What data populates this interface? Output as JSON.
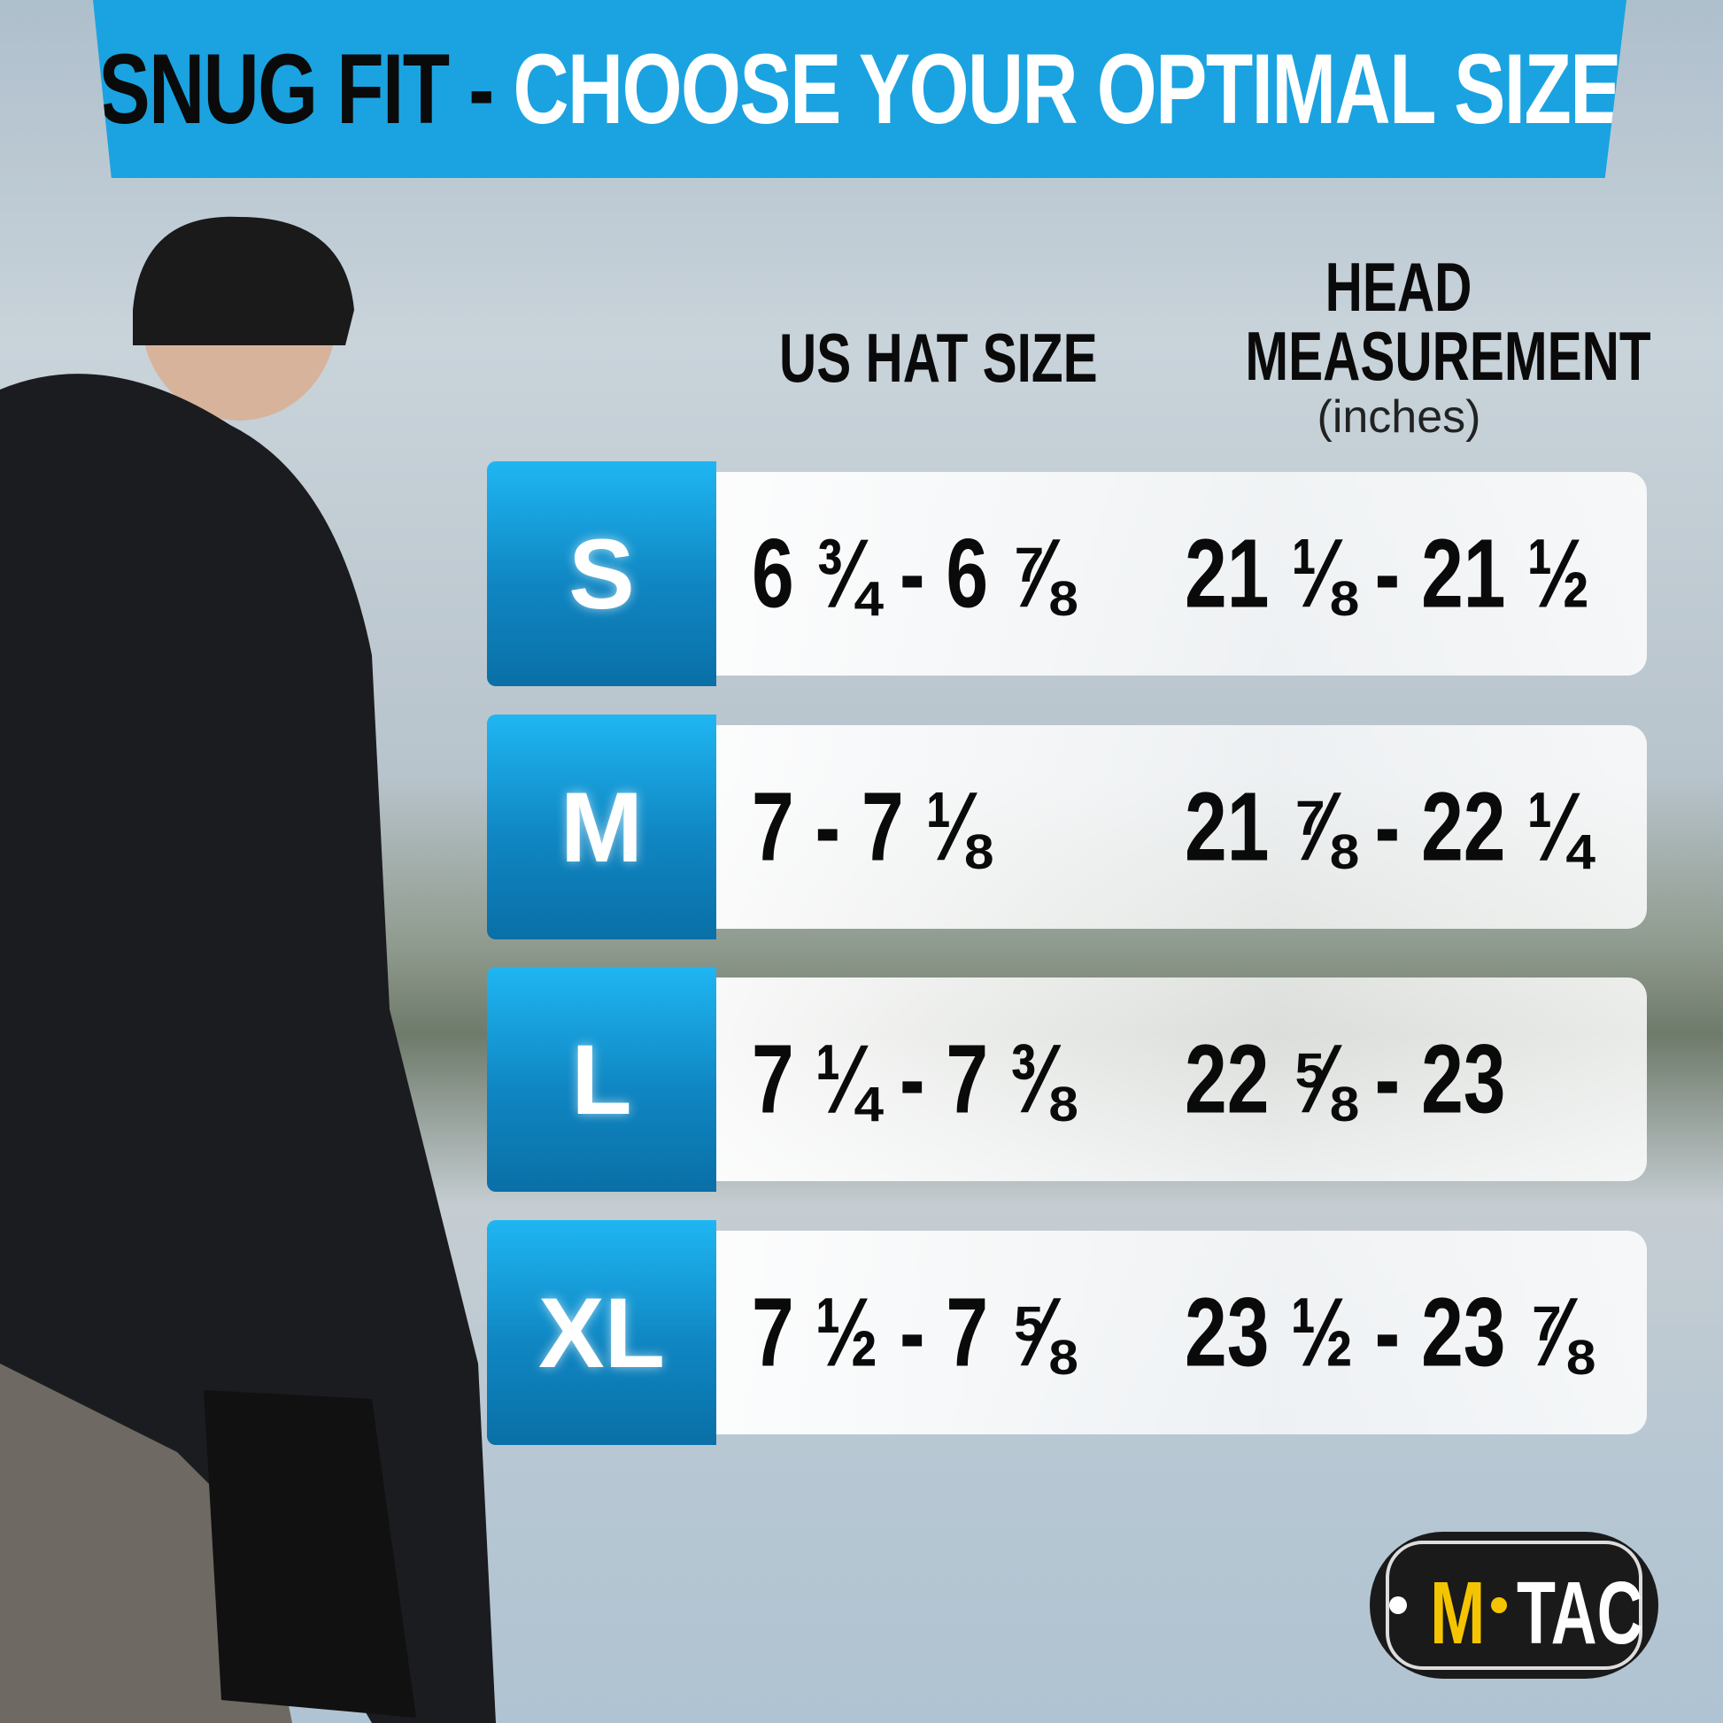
{
  "banner": {
    "title_dark": "SNUG FIT - ",
    "title_light": "CHOOSE YOUR OPTIMAL SIZE"
  },
  "columns": {
    "hat_size": "US HAT SIZE",
    "head_line1": "HEAD",
    "head_line2": "MEASUREMENT",
    "head_unit": "(inches)"
  },
  "rows": [
    {
      "size": "S",
      "hat": "6 ¾ - 6 ⅞",
      "head": "21 ⅛ - 21 ½"
    },
    {
      "size": "M",
      "hat": "7 - 7 ⅛",
      "head": "21 ⅞ - 22 ¼"
    },
    {
      "size": "L",
      "hat": "7 ¼ - 7 ⅜",
      "head": "22 ⅝ - 23"
    },
    {
      "size": "XL",
      "hat": "7 ½ - 7 ⅝",
      "head": "23 ½ - 23 ⅞"
    }
  ],
  "logo": {
    "text_m": "M",
    "text_tac": "TAC"
  },
  "colors": {
    "banner": "#1aa3e0",
    "badge": "#0f86c2",
    "logo_yellow": "#f5c400"
  }
}
